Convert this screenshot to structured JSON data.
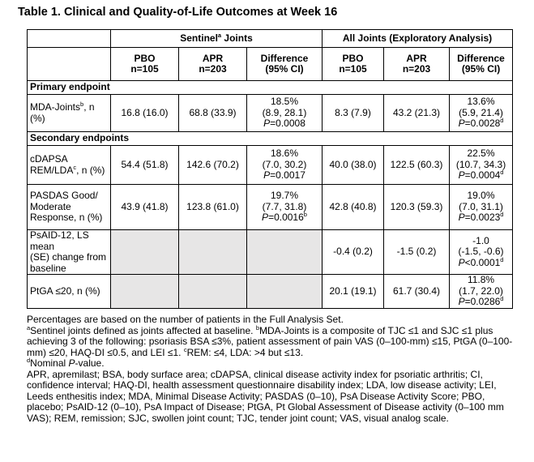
{
  "title": "Table 1. Clinical and Quality-of-Life Outcomes at Week 16",
  "headers": {
    "sentinel_group": "Sentinel",
    "sentinel_group_sup": "a",
    "sentinel_group_tail": " Joints",
    "all_group": "All Joints (Exploratory Analysis)",
    "pbo": "PBO",
    "pbo_n": "n=105",
    "apr": "APR",
    "apr_n": "n=203",
    "diff": "Difference",
    "ci": "(95% CI)"
  },
  "sections": {
    "primary": "Primary endpoint",
    "secondary": "Secondary endpoints"
  },
  "rows": [
    {
      "label_lines": [
        "MDA-Joints"
      ],
      "label_sup": "b",
      "label_tail": ", n (%)",
      "s_pbo": "16.8 (16.0)",
      "s_apr": "68.8 (33.9)",
      "s_diff": [
        "18.5%",
        "(8.9, 28.1)"
      ],
      "s_p": "=0.0008",
      "s_p_sup": "",
      "a_pbo": "8.3 (7.9)",
      "a_apr": "43.2 (21.3)",
      "a_diff": [
        "13.6%",
        "(5.9, 21.4)"
      ],
      "a_p": "=0.0028",
      "a_p_sup": "d"
    },
    {
      "label_lines": [
        "cDAPSA",
        "REM/LDA"
      ],
      "label_sup": "c",
      "label_tail": ", n (%)",
      "s_pbo": "54.4 (51.8)",
      "s_apr": "142.6 (70.2)",
      "s_diff": [
        "18.6%",
        "(7.0, 30.2)"
      ],
      "s_p": "=0.0017",
      "s_p_sup": "",
      "a_pbo": "40.0 (38.0)",
      "a_apr": "122.5 (60.3)",
      "a_diff": [
        "22.5%",
        "(10.7, 34.3)"
      ],
      "a_p": "=0.0004",
      "a_p_sup": "d"
    },
    {
      "label_lines": [
        "PASDAS Good/",
        "Moderate",
        "Response, n (%)"
      ],
      "s_pbo": "43.9 (41.8)",
      "s_apr": "123.8 (61.0)",
      "s_diff": [
        "19.7%",
        "(7.7, 31.8)"
      ],
      "s_p": "=0.0016",
      "s_p_sup": "b",
      "a_pbo": "42.8 (40.8)",
      "a_apr": "120.3 (59.3)",
      "a_diff": [
        "19.0%",
        "(7.0, 31.1)"
      ],
      "a_p": "=0.0023",
      "a_p_sup": "d"
    },
    {
      "label_lines": [
        "PsAID-12, LS mean",
        "(SE) change from",
        "baseline"
      ],
      "a_pbo": "-0.4 (0.2)",
      "a_apr": "-1.5 (0.2)",
      "a_diff": [
        "-1.0",
        "(-1.5, -0.6)"
      ],
      "a_p": "<0.0001",
      "a_p_sup": "d"
    },
    {
      "label_lines": [
        "PtGA ≤20, n (%)"
      ],
      "a_pbo": "20.1 (19.1)",
      "a_apr": "61.7 (30.4)",
      "a_diff": [
        "11.8%",
        "(1.7, 22.0)"
      ],
      "a_p": "=0.0286",
      "a_p_sup": "d"
    }
  ],
  "p_letter": "P",
  "footnotes": {
    "line1": "Percentages are based on the number of patients in the Full Analysis Set.",
    "a_sup": "a",
    "a_text": "Sentinel joints defined as joints affected at baseline. ",
    "b_sup": "b",
    "b_text": "MDA-Joints is a composite of TJC ≤1 and SJC ≤1 plus achieving 3 of the following: psoriasis BSA ≤3%, patient assessment of pain VAS (0–100-mm) ≤15, PtGA (0–100-mm) ≤20, HAQ-DI ≤0.5, and LEI ≤1. ",
    "c_sup": "c",
    "c_text": "REM: ≤4, LDA: >4 but ≤13.",
    "d_sup": "d",
    "d_text": "Nominal ",
    "d_p": "P",
    "d_tail": "-value.",
    "abbrev": "APR, apremilast; BSA, body surface area; cDAPSA, clinical disease activity index for psoriatic arthritis; CI, confidence interval; HAQ-DI, health assessment questionnaire disability index; LDA, low disease activity; LEI, Leeds enthesitis index; MDA, Minimal Disease Activity; PASDAS (0–10), PsA Disease Activity Score; PBO, placebo; PsAID-12 (0–10), PsA Impact of Disease; PtGA, Pt Global Assessment of Disease activity (0–100 mm VAS); REM, remission; SJC, swollen joint count; TJC, tender joint count; VAS, visual analog scale."
  }
}
